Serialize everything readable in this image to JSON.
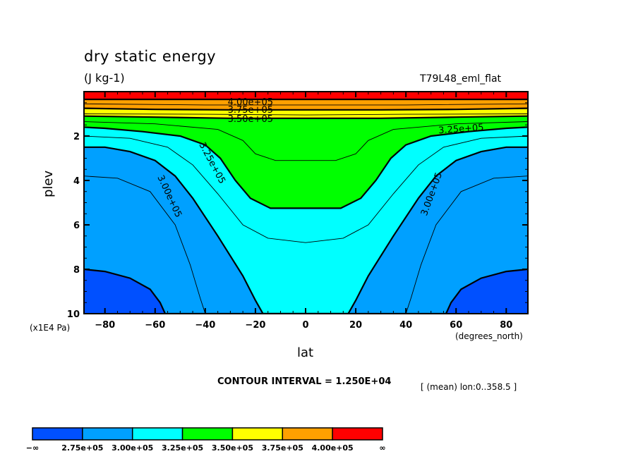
{
  "chart_data": {
    "type": "contour",
    "title": "dry static energy",
    "units": "(J kg-1)",
    "experiment": "T79L48_eml_flat",
    "xlabel": "lat",
    "xunits": "(degrees_north)",
    "ylabel": "plev",
    "yunits": "(x1E4 Pa)",
    "xlim": [
      -88.5,
      88.5
    ],
    "ylim": [
      10,
      0
    ],
    "y_inverted": true,
    "xticks": [
      -80,
      -60,
      -40,
      -20,
      0,
      20,
      40,
      60,
      80
    ],
    "xtick_labels": [
      "−80",
      "−60",
      "−40",
      "−20",
      "0",
      "20",
      "40",
      "60",
      "80"
    ],
    "yticks": [
      2,
      4,
      6,
      8,
      10
    ],
    "ytick_labels": [
      "2",
      "4",
      "6",
      "8",
      "10"
    ],
    "contour_interval_text": "CONTOUR INTERVAL = 1.250E+04",
    "contour_interval": 12500,
    "averaging_note": "[ (mean) lon:0..358.5 ]",
    "levels": [
      275000,
      300000,
      325000,
      350000,
      375000,
      400000
    ],
    "colorbar": {
      "colors": [
        "#0050ff",
        "#00a0ff",
        "#00ffff",
        "#00ff00",
        "#ffff00",
        "#ffa000",
        "#ff0000"
      ],
      "labels": [
        "−∞",
        "2.75e+05",
        "3.00e+05",
        "3.25e+05",
        "3.50e+05",
        "3.75e+05",
        "4.00e+05",
        "∞"
      ]
    },
    "contour_labels": [
      {
        "text": "4.00e+05",
        "lat": -22,
        "plev": 0.45
      },
      {
        "text": "3.75e+05",
        "lat": -22,
        "plev": 0.8
      },
      {
        "text": "3.50e+05",
        "lat": -22,
        "plev": 1.2
      },
      {
        "text": "3.25e+05",
        "lat": 62,
        "plev": 1.65
      },
      {
        "text": "3.25e+05",
        "lat": -37,
        "plev": 3.2
      },
      {
        "text": "3.00e+05",
        "lat": -54,
        "plev": 4.7
      },
      {
        "text": "3.00e+05",
        "lat": 50,
        "plev": 4.6
      }
    ],
    "boundaries": [
      {
        "between": [
          "2.75e+05",
          "3.00e+05"
        ],
        "lat": [
          -88.5,
          -80,
          -70,
          -62,
          -58,
          -56
        ],
        "plev": [
          8.0,
          8.1,
          8.4,
          8.9,
          9.5,
          10.0
        ],
        "mirror": true
      },
      {
        "between": [
          "3.00e+05",
          "3.25e+05"
        ],
        "lat": [
          -88.5,
          -80,
          -70,
          -60,
          -52,
          -45,
          -35,
          -25,
          -20,
          -17
        ],
        "plev": [
          2.5,
          2.5,
          2.7,
          3.1,
          3.8,
          4.8,
          6.5,
          8.3,
          9.4,
          10.0
        ],
        "mirror": true
      },
      {
        "between": [
          "3.25e+05",
          "3.50e+05"
        ],
        "lat": [
          -88.5,
          -80,
          -65,
          -50,
          -40,
          -34,
          -28,
          -22,
          -14,
          0
        ],
        "plev": [
          1.6,
          1.65,
          1.8,
          2.0,
          2.4,
          3.0,
          4.0,
          4.8,
          5.25,
          5.25
        ],
        "mirror": true
      },
      {
        "between": [
          "3.50e+05",
          "3.75e+05"
        ],
        "lat": [
          -88.5,
          -60,
          -30,
          0
        ],
        "plev": [
          1.1,
          1.15,
          1.2,
          1.2
        ],
        "mirror": true
      },
      {
        "between": [
          "3.75e+05",
          "4.00e+05"
        ],
        "lat": [
          -88.5,
          -60,
          -30,
          0
        ],
        "plev": [
          0.75,
          0.8,
          0.82,
          0.82
        ],
        "mirror": true
      },
      {
        "between": [
          "4.00e+05",
          "above"
        ],
        "lat": [
          -88.5,
          -60,
          -30,
          0
        ],
        "plev": [
          0.35,
          0.35,
          0.35,
          0.35
        ],
        "mirror": true
      }
    ],
    "thin_contours": [
      {
        "value": 287500,
        "lat": [
          -88.5,
          -75,
          -62,
          -52,
          -46,
          -42,
          -40
        ],
        "plev": [
          3.8,
          3.9,
          4.5,
          6.0,
          7.8,
          9.3,
          10.0
        ],
        "mirror": true
      },
      {
        "value": 312500,
        "lat": [
          -88.5,
          -70,
          -55,
          -45,
          -35,
          -25,
          -15,
          0
        ],
        "plev": [
          2.0,
          2.1,
          2.5,
          3.3,
          4.6,
          6.0,
          6.6,
          6.8
        ],
        "mirror": true
      },
      {
        "value": 337500,
        "lat": [
          -88.5,
          -60,
          -35,
          -25,
          -20,
          -12,
          0
        ],
        "plev": [
          1.35,
          1.45,
          1.7,
          2.2,
          2.8,
          3.1,
          3.1
        ],
        "mirror": true
      },
      {
        "value": 362500,
        "lat": [
          -88.5,
          -40,
          0
        ],
        "plev": [
          1.0,
          1.02,
          1.05
        ],
        "mirror": true
      },
      {
        "value": 387500,
        "lat": [
          -88.5,
          -40,
          0
        ],
        "plev": [
          0.55,
          0.6,
          0.6
        ],
        "mirror": true
      }
    ]
  }
}
